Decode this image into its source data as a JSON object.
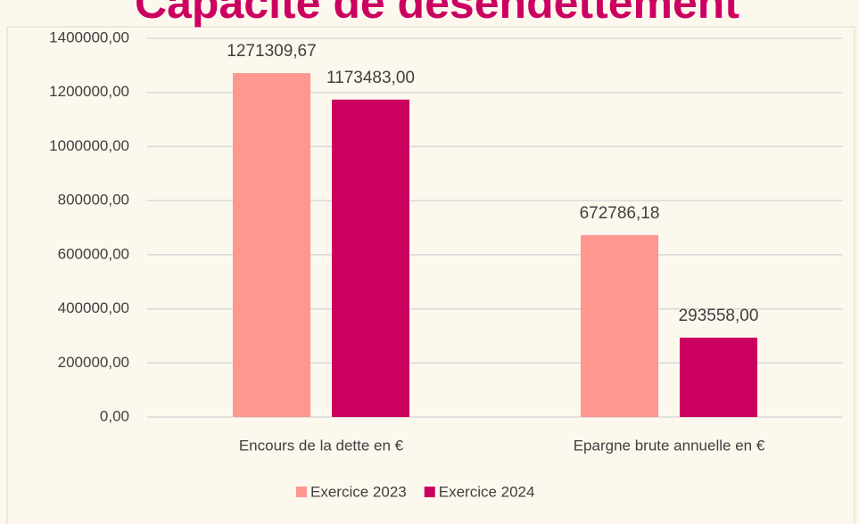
{
  "chart_data": {
    "type": "bar",
    "title": "Capacité de désendettement",
    "categories": [
      "Encours de la dette en €",
      "Epargne brute annuelle en €"
    ],
    "series": [
      {
        "name": "Exercice 2023",
        "color": "#ff968f",
        "values": [
          1271309.67,
          672786.18
        ],
        "value_labels": [
          "1271309,67",
          "672786,18"
        ]
      },
      {
        "name": "Exercice 2024",
        "color": "#cc0060",
        "values": [
          1173483,
          293558
        ],
        "value_labels": [
          "1173483,00",
          "293558,00"
        ]
      }
    ],
    "ylim": [
      0,
      1400000
    ],
    "yticks": [
      {
        "value": 0,
        "label": "0,00"
      },
      {
        "value": 200000,
        "label": "200000,00"
      },
      {
        "value": 400000,
        "label": "400000,00"
      },
      {
        "value": 600000,
        "label": "600000,00"
      },
      {
        "value": 800000,
        "label": "800000,00"
      },
      {
        "value": 1000000,
        "label": "1000000,00"
      },
      {
        "value": 1200000,
        "label": "1200000,00"
      },
      {
        "value": 1400000,
        "label": "1400000,00"
      }
    ],
    "grid": true,
    "legend": "bottom"
  }
}
